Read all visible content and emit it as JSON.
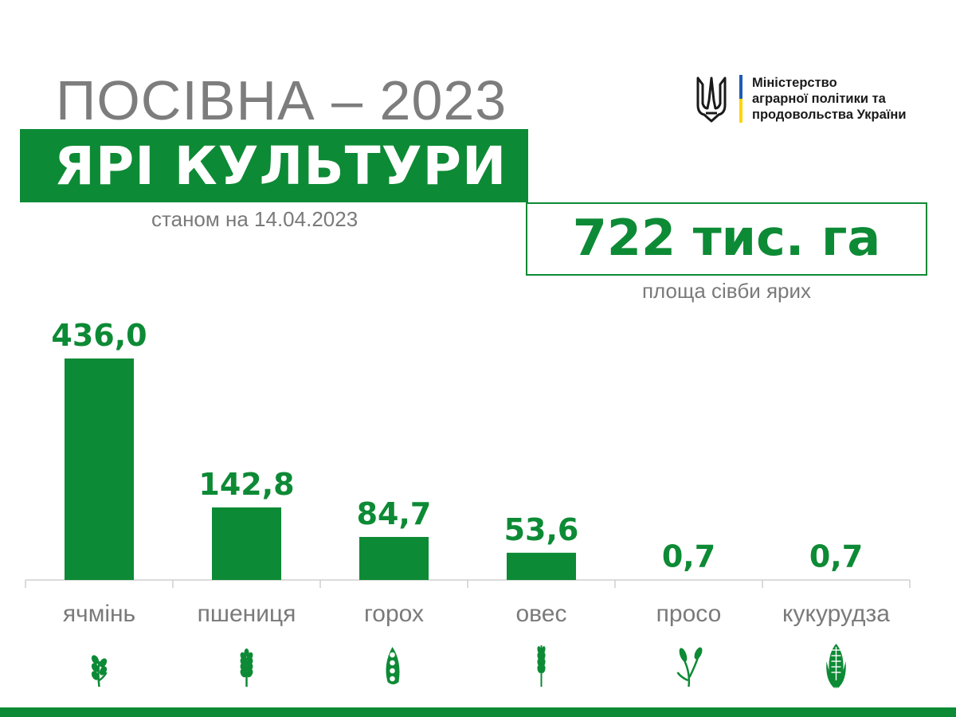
{
  "header": {
    "title": "ПОСІВНА – 2023",
    "subtitle": "ЯРІ КУЛЬТУРИ",
    "date": "станом на 14.04.2023"
  },
  "ministry": {
    "lines": [
      "Міністерство",
      "аграрної політики та",
      "продовольства України"
    ]
  },
  "total": {
    "value": "722 тис. га",
    "caption": "площа сівби ярих"
  },
  "colors": {
    "accent": "#0d8a35",
    "text_gray": "#7a7a7a"
  },
  "chart_data": {
    "type": "bar",
    "categories": [
      "ячмінь",
      "пшениця",
      "горох",
      "овес",
      "просо",
      "кукурудза"
    ],
    "values": [
      436.0,
      142.8,
      84.7,
      53.6,
      0.7,
      0.7
    ],
    "value_labels": [
      "436,0",
      "142,8",
      "84,7",
      "53,6",
      "0,7",
      "0,7"
    ],
    "icons": [
      "barley-icon",
      "wheat-icon",
      "pea-pod-icon",
      "oat-icon",
      "millet-icon",
      "corn-icon"
    ],
    "xlabel": "",
    "ylabel": "",
    "ylim": [
      0,
      436
    ],
    "grid": false
  }
}
